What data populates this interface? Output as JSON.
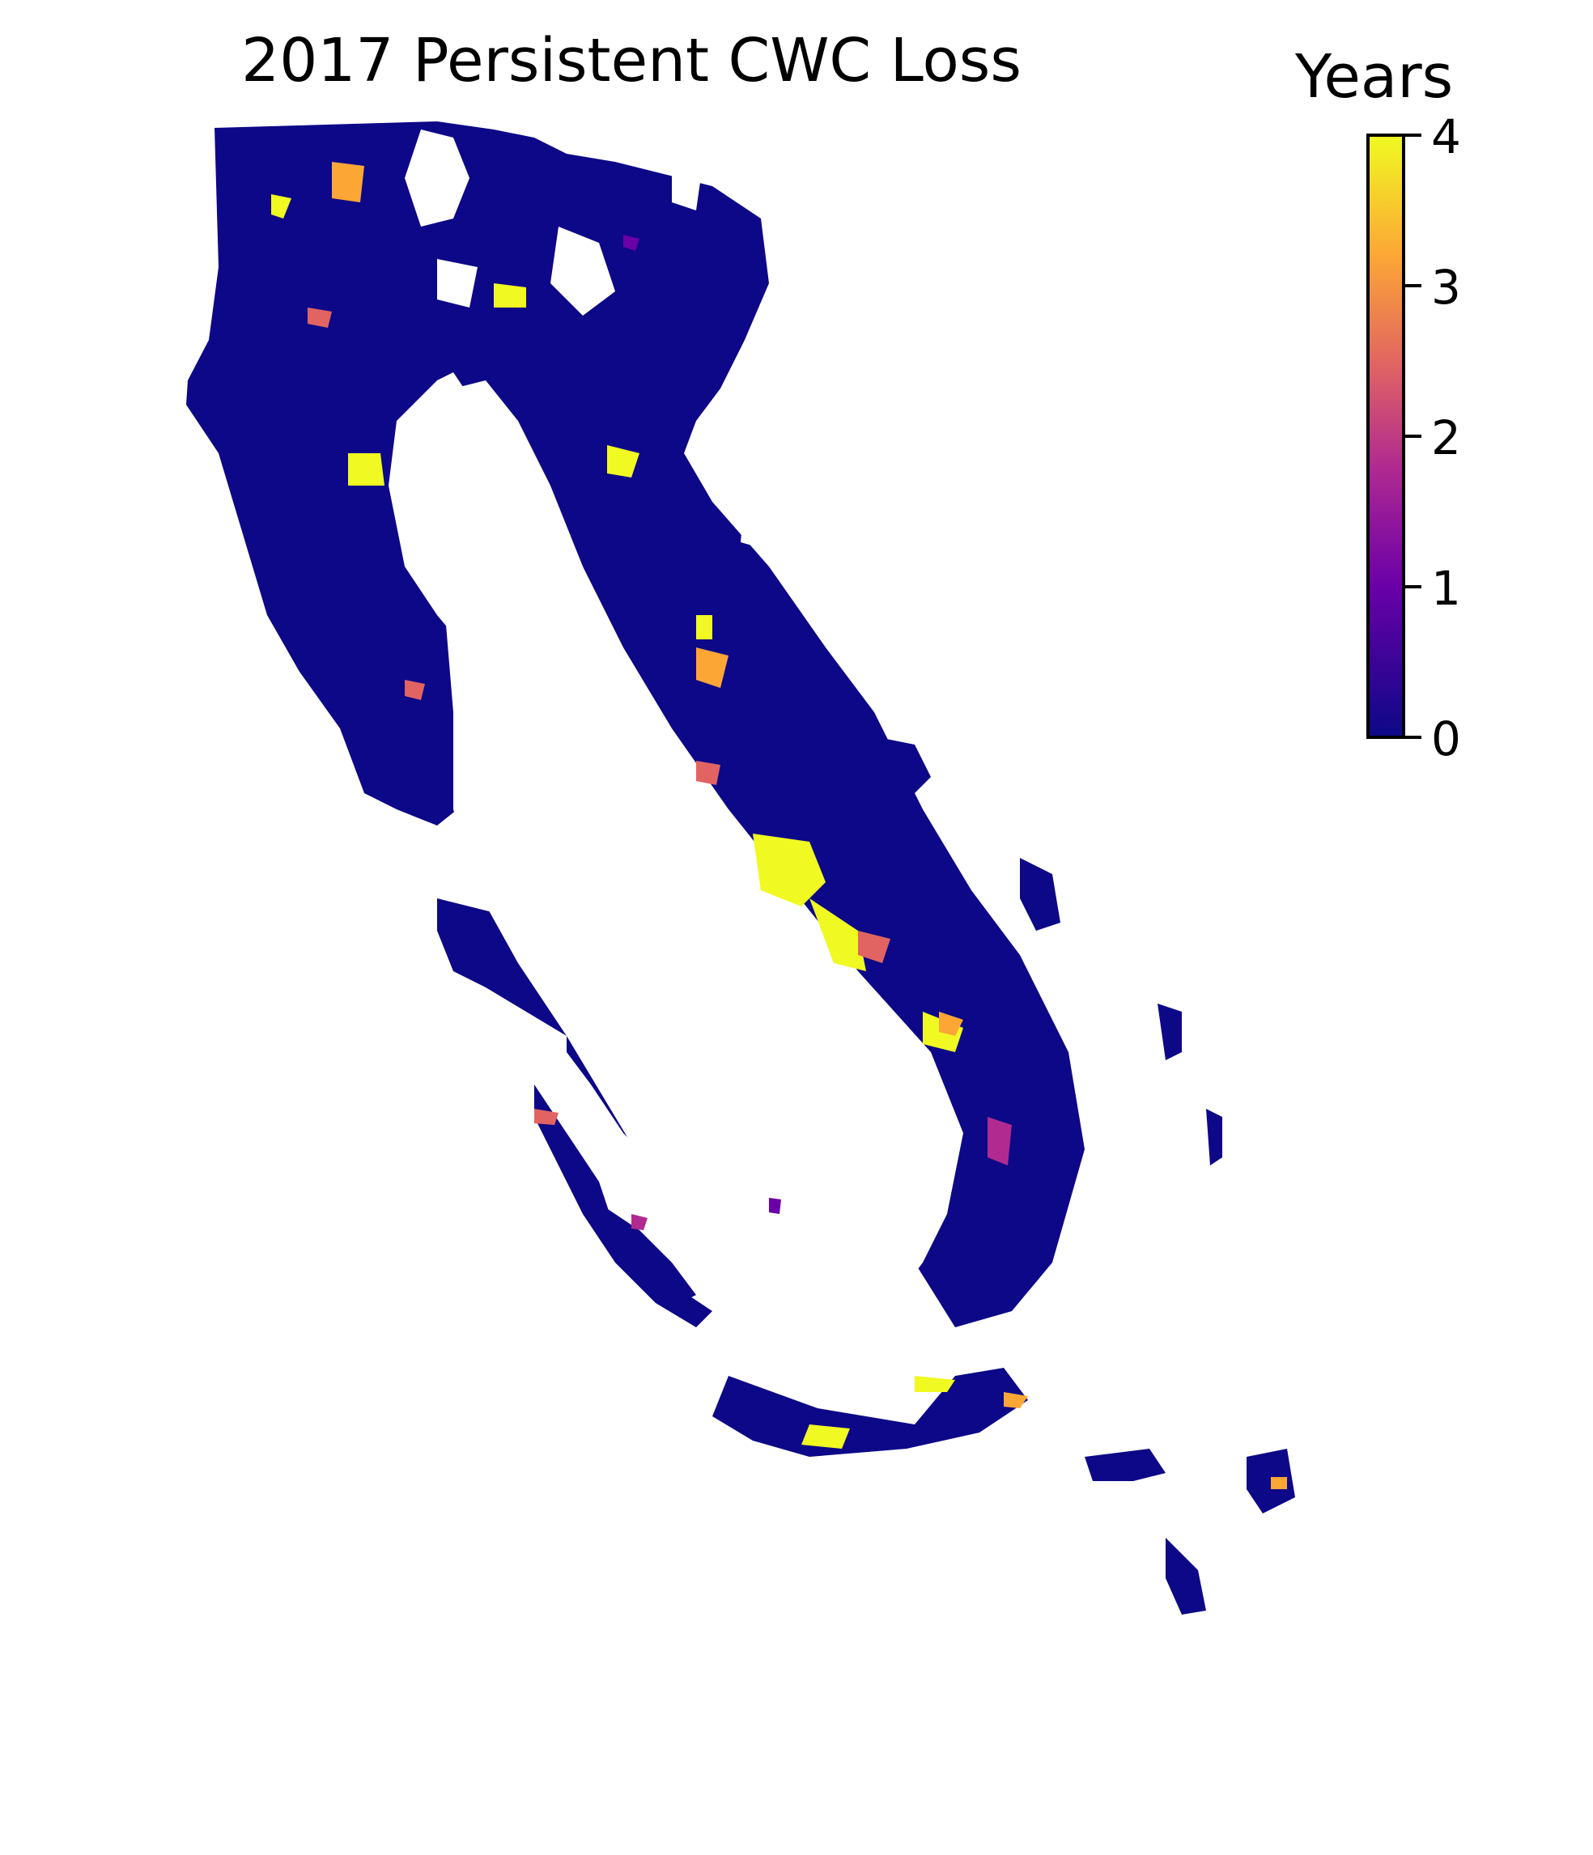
{
  "title": "2017 Persistent CWC Loss",
  "colorbar": {
    "title": "Years",
    "ticks": [
      "0",
      "1",
      "2",
      "3",
      "4"
    ],
    "min": 0,
    "max": 4,
    "colormap": "plasma",
    "colors": [
      "#0d0887",
      "#6a00a8",
      "#b12a90",
      "#e16462",
      "#fca636",
      "#f0f921"
    ]
  }
}
